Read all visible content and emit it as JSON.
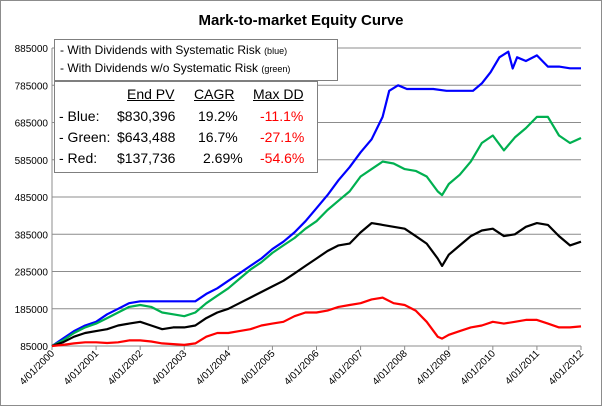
{
  "chart_data": {
    "type": "line",
    "title": "Mark-to-market Equity Curve",
    "ylim": [
      85000,
      885000
    ],
    "yticks": [
      85000,
      185000,
      285000,
      385000,
      485000,
      585000,
      685000,
      785000,
      885000
    ],
    "ytick_labels": [
      "85000",
      "185000",
      "285000",
      "385000",
      "485000",
      "585000",
      "685000",
      "785000",
      "885000"
    ],
    "xlim": [
      2000.25,
      2012.25
    ],
    "xticks": [
      2000.25,
      2001.25,
      2002.25,
      2003.25,
      2004.25,
      2005.25,
      2006.25,
      2007.25,
      2008.25,
      2009.25,
      2010.25,
      2011.25,
      2012.25
    ],
    "xtick_labels": [
      "4/01/2000",
      "4/01/2001",
      "4/01/2002",
      "4/01/2003",
      "4/01/2004",
      "4/01/2005",
      "4/01/2006",
      "4/01/2007",
      "4/01/2008",
      "4/01/2009",
      "4/01/2010",
      "4/01/2011",
      "4/01/2012"
    ],
    "grid": "horizontal",
    "legend": [
      {
        "label": "- With Dividends with Systematic Risk",
        "note": "(blue)"
      },
      {
        "label": "- With Dividends w/o Systematic Risk",
        "note": "(green)"
      }
    ],
    "series": [
      {
        "color": "#0000ff",
        "x": [
          2000.25,
          2000.5,
          2000.75,
          2001.0,
          2001.25,
          2001.5,
          2001.75,
          2002.0,
          2002.25,
          2002.5,
          2002.75,
          2003.0,
          2003.25,
          2003.5,
          2003.75,
          2004.0,
          2004.25,
          2004.5,
          2004.75,
          2005.0,
          2005.25,
          2005.5,
          2005.75,
          2006.0,
          2006.25,
          2006.5,
          2006.75,
          2007.0,
          2007.25,
          2007.5,
          2007.75,
          2007.9,
          2008.1,
          2008.3,
          2008.6,
          2008.9,
          2009.2,
          2009.5,
          2009.8,
          2010.0,
          2010.2,
          2010.4,
          2010.6,
          2010.7,
          2010.8,
          2011.0,
          2011.25,
          2011.5,
          2011.75,
          2012.0,
          2012.25
        ],
        "y": [
          85000,
          105000,
          125000,
          140000,
          150000,
          170000,
          185000,
          200000,
          205000,
          205000,
          205000,
          205000,
          205000,
          205000,
          225000,
          240000,
          260000,
          280000,
          300000,
          320000,
          345000,
          365000,
          390000,
          420000,
          455000,
          490000,
          530000,
          565000,
          605000,
          640000,
          700000,
          770000,
          785000,
          775000,
          775000,
          775000,
          770000,
          770000,
          770000,
          790000,
          820000,
          860000,
          875000,
          830000,
          860000,
          850000,
          865000,
          835000,
          835000,
          830396,
          830396
        ]
      },
      {
        "color": "#00b050",
        "x": [
          2000.25,
          2000.5,
          2000.75,
          2001.0,
          2001.25,
          2001.5,
          2001.75,
          2002.0,
          2002.25,
          2002.5,
          2002.75,
          2003.0,
          2003.25,
          2003.5,
          2003.75,
          2004.0,
          2004.25,
          2004.5,
          2004.75,
          2005.0,
          2005.25,
          2005.5,
          2005.75,
          2006.0,
          2006.25,
          2006.5,
          2006.75,
          2007.0,
          2007.25,
          2007.5,
          2007.75,
          2008.0,
          2008.25,
          2008.5,
          2008.75,
          2009.0,
          2009.1,
          2009.25,
          2009.5,
          2009.75,
          2010.0,
          2010.25,
          2010.5,
          2010.75,
          2011.0,
          2011.25,
          2011.5,
          2011.75,
          2012.0,
          2012.25
        ],
        "y": [
          85000,
          100000,
          120000,
          135000,
          145000,
          160000,
          175000,
          190000,
          195000,
          190000,
          175000,
          170000,
          165000,
          175000,
          200000,
          220000,
          240000,
          265000,
          290000,
          310000,
          335000,
          355000,
          375000,
          400000,
          420000,
          450000,
          475000,
          500000,
          540000,
          560000,
          580000,
          575000,
          560000,
          555000,
          540000,
          500000,
          490000,
          520000,
          545000,
          580000,
          630000,
          650000,
          610000,
          645000,
          670000,
          700000,
          700000,
          650000,
          630000,
          643488
        ]
      },
      {
        "color": "#000000",
        "x": [
          2000.25,
          2000.5,
          2000.75,
          2001.0,
          2001.25,
          2001.5,
          2001.75,
          2002.0,
          2002.25,
          2002.5,
          2002.75,
          2003.0,
          2003.25,
          2003.5,
          2003.75,
          2004.0,
          2004.25,
          2004.5,
          2004.75,
          2005.0,
          2005.25,
          2005.5,
          2005.75,
          2006.0,
          2006.25,
          2006.5,
          2006.75,
          2007.0,
          2007.25,
          2007.5,
          2007.75,
          2008.0,
          2008.25,
          2008.5,
          2008.75,
          2009.0,
          2009.1,
          2009.25,
          2009.5,
          2009.75,
          2010.0,
          2010.25,
          2010.5,
          2010.75,
          2011.0,
          2011.25,
          2011.5,
          2011.75,
          2012.0,
          2012.25
        ],
        "y": [
          85000,
          95000,
          110000,
          120000,
          125000,
          130000,
          140000,
          145000,
          150000,
          140000,
          130000,
          135000,
          135000,
          140000,
          160000,
          175000,
          185000,
          200000,
          215000,
          230000,
          245000,
          260000,
          280000,
          300000,
          320000,
          340000,
          355000,
          360000,
          390000,
          415000,
          410000,
          405000,
          400000,
          380000,
          360000,
          320000,
          300000,
          330000,
          355000,
          380000,
          395000,
          400000,
          380000,
          385000,
          405000,
          415000,
          410000,
          380000,
          355000,
          365000
        ]
      },
      {
        "color": "#ff0000",
        "x": [
          2000.25,
          2000.5,
          2000.75,
          2001.0,
          2001.25,
          2001.5,
          2001.75,
          2002.0,
          2002.25,
          2002.5,
          2002.75,
          2003.0,
          2003.25,
          2003.5,
          2003.75,
          2004.0,
          2004.25,
          2004.5,
          2004.75,
          2005.0,
          2005.25,
          2005.5,
          2005.75,
          2006.0,
          2006.25,
          2006.5,
          2006.75,
          2007.0,
          2007.25,
          2007.5,
          2007.75,
          2008.0,
          2008.25,
          2008.5,
          2008.75,
          2009.0,
          2009.1,
          2009.25,
          2009.5,
          2009.75,
          2010.0,
          2010.25,
          2010.5,
          2010.75,
          2011.0,
          2011.25,
          2011.5,
          2011.75,
          2012.0,
          2012.25
        ],
        "y": [
          85000,
          88000,
          92000,
          95000,
          95000,
          93000,
          95000,
          100000,
          100000,
          97000,
          92000,
          90000,
          88000,
          92000,
          110000,
          120000,
          120000,
          125000,
          130000,
          140000,
          145000,
          150000,
          165000,
          175000,
          175000,
          180000,
          190000,
          195000,
          200000,
          210000,
          215000,
          200000,
          195000,
          180000,
          150000,
          110000,
          105000,
          115000,
          125000,
          135000,
          140000,
          150000,
          145000,
          150000,
          155000,
          155000,
          145000,
          135000,
          135000,
          137736
        ]
      }
    ]
  },
  "stats": {
    "headers": [
      "End PV",
      "CAGR",
      "Max DD"
    ],
    "rows": [
      {
        "name": "- Blue:",
        "end_pv": "$830,396",
        "cagr": "19.2%",
        "max_dd": "-11.1%"
      },
      {
        "name": "- Green:",
        "end_pv": "$643,488",
        "cagr": "16.7%",
        "max_dd": "-27.1%"
      },
      {
        "name": "- Red:",
        "end_pv": "$137,736",
        "cagr": "2.69%",
        "max_dd": "-54.6%"
      }
    ]
  }
}
